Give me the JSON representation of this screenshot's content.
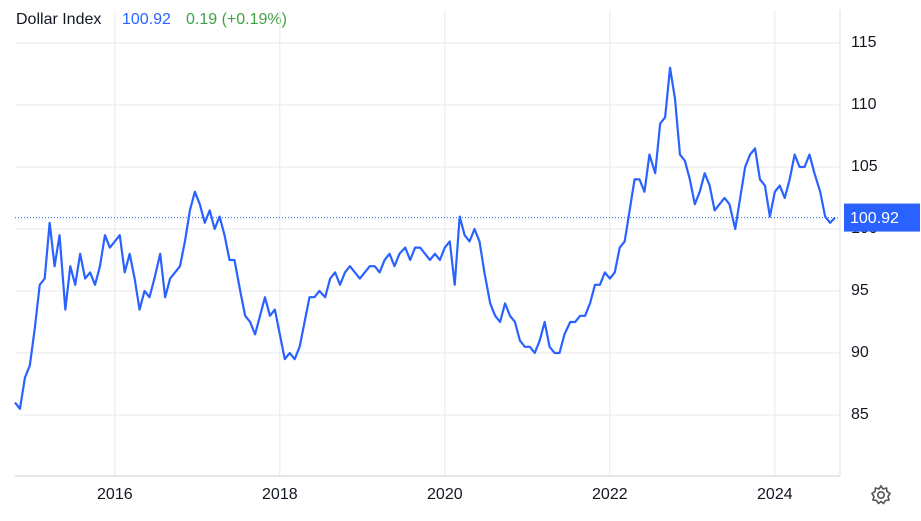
{
  "chart_data": {
    "type": "line",
    "title": "Dollar Index",
    "last_value": 100.92,
    "change": "0.19 (+0.19%)",
    "color": "#2962ff",
    "grid": true,
    "x": [
      2014.79,
      2014.85,
      2014.91,
      2014.97,
      2015.03,
      2015.09,
      2015.15,
      2015.21,
      2015.27,
      2015.33,
      2015.4,
      2015.46,
      2015.52,
      2015.58,
      2015.64,
      2015.7,
      2015.76,
      2015.82,
      2015.88,
      2015.94,
      2016.0,
      2016.06,
      2016.12,
      2016.18,
      2016.24,
      2016.3,
      2016.36,
      2016.42,
      2016.48,
      2016.55,
      2016.61,
      2016.67,
      2016.73,
      2016.79,
      2016.85,
      2016.91,
      2016.97,
      2017.03,
      2017.09,
      2017.15,
      2017.21,
      2017.27,
      2017.33,
      2017.39,
      2017.45,
      2017.52,
      2017.58,
      2017.64,
      2017.7,
      2017.76,
      2017.82,
      2017.88,
      2017.94,
      2018.0,
      2018.06,
      2018.12,
      2018.18,
      2018.24,
      2018.3,
      2018.36,
      2018.42,
      2018.48,
      2018.55,
      2018.61,
      2018.67,
      2018.73,
      2018.79,
      2018.85,
      2018.91,
      2018.97,
      2019.03,
      2019.09,
      2019.15,
      2019.21,
      2019.27,
      2019.33,
      2019.39,
      2019.45,
      2019.52,
      2019.58,
      2019.64,
      2019.7,
      2019.76,
      2019.82,
      2019.88,
      2019.94,
      2020.0,
      2020.06,
      2020.12,
      2020.18,
      2020.24,
      2020.3,
      2020.36,
      2020.42,
      2020.48,
      2020.55,
      2020.61,
      2020.67,
      2020.73,
      2020.79,
      2020.85,
      2020.91,
      2020.97,
      2021.03,
      2021.09,
      2021.15,
      2021.21,
      2021.27,
      2021.33,
      2021.39,
      2021.45,
      2021.52,
      2021.58,
      2021.64,
      2021.7,
      2021.76,
      2021.82,
      2021.88,
      2021.94,
      2022.0,
      2022.06,
      2022.12,
      2022.18,
      2022.24,
      2022.3,
      2022.36,
      2022.42,
      2022.48,
      2022.55,
      2022.61,
      2022.67,
      2022.73,
      2022.79,
      2022.85,
      2022.91,
      2022.97,
      2023.03,
      2023.09,
      2023.15,
      2023.21,
      2023.27,
      2023.33,
      2023.39,
      2023.45,
      2023.52,
      2023.58,
      2023.64,
      2023.7,
      2023.76,
      2023.82,
      2023.88,
      2023.94,
      2024.0,
      2024.06,
      2024.12,
      2024.18,
      2024.24,
      2024.3,
      2024.36,
      2024.42,
      2024.48,
      2024.55,
      2024.61,
      2024.67,
      2024.73
    ],
    "values": [
      86,
      85.5,
      88,
      89,
      92,
      95.5,
      96,
      100.5,
      97,
      99.5,
      93.5,
      97,
      95.5,
      98,
      96,
      96.5,
      95.5,
      97,
      99.5,
      98.5,
      99,
      99.5,
      96.5,
      98,
      96,
      93.5,
      95,
      94.5,
      96,
      98,
      94.5,
      96,
      96.5,
      97,
      99,
      101.5,
      103,
      102,
      100.5,
      101.5,
      100,
      101,
      99.5,
      97.5,
      97.5,
      95,
      93,
      92.5,
      91.5,
      93,
      94.5,
      93,
      93.5,
      91.5,
      89.5,
      90,
      89.5,
      90.5,
      92.5,
      94.5,
      94.5,
      95,
      94.5,
      96,
      96.5,
      95.5,
      96.5,
      97,
      96.5,
      96,
      96.5,
      97,
      97,
      96.5,
      97.5,
      98,
      97,
      98,
      98.5,
      97.5,
      98.5,
      98.5,
      98,
      97.5,
      98,
      97.5,
      98.5,
      99,
      95.5,
      101,
      99.5,
      99,
      100,
      99,
      96.5,
      94,
      93,
      92.5,
      94,
      93,
      92.5,
      91,
      90.5,
      90.5,
      90,
      91,
      92.5,
      90.5,
      90,
      90,
      91.5,
      92.5,
      92.5,
      93,
      93,
      94,
      95.5,
      95.5,
      96.5,
      96,
      96.5,
      98.5,
      99,
      101.5,
      104,
      104,
      103,
      106,
      104.5,
      108.5,
      109,
      113,
      110.5,
      106,
      105.5,
      104,
      102,
      103,
      104.5,
      103.5,
      101.5,
      102,
      102.5,
      102,
      100,
      102.5,
      105,
      106,
      106.5,
      104,
      103.5,
      101,
      103,
      103.5,
      102.5,
      104,
      106,
      105,
      105,
      106,
      104.5,
      103,
      101,
      100.5,
      100.92
    ],
    "xlim": [
      2014.79,
      2024.79
    ],
    "xticks": [
      2016,
      2018,
      2020,
      2022,
      2024
    ],
    "ylim": [
      80.08,
      117.66
    ],
    "yticks": [
      85,
      90,
      95,
      100,
      105,
      110,
      115
    ]
  }
}
